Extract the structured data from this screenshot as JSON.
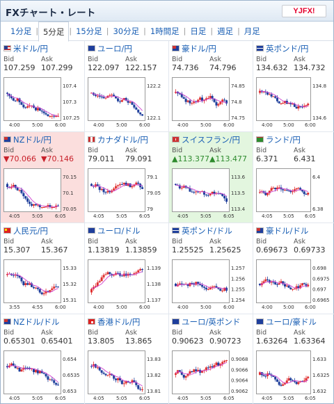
{
  "header": {
    "title": "FXチャート・レート",
    "logo": "YJFX!"
  },
  "tabs": [
    {
      "label": "1分足",
      "active": false
    },
    {
      "label": "5分足",
      "active": true
    },
    {
      "label": "15分足",
      "active": false
    },
    {
      "label": "30分足",
      "active": false
    },
    {
      "label": "1時間足",
      "active": false
    },
    {
      "label": "日足",
      "active": false
    },
    {
      "label": "週足",
      "active": false
    },
    {
      "label": "月足",
      "active": false
    }
  ],
  "bid_label": "Bid",
  "ask_label": "Ask",
  "pairs": [
    {
      "name": "米ドル/円",
      "flag": "us",
      "bid": "107.259",
      "ask": "107.299",
      "state": "",
      "yticks": [
        "107.4",
        "107.3",
        "107.25"
      ],
      "xticks": [
        "4:00",
        "5:00",
        "6:00"
      ],
      "trend": "down",
      "seed": 1
    },
    {
      "name": "ユーロ/円",
      "flag": "eu",
      "bid": "122.097",
      "ask": "122.157",
      "state": "",
      "yticks": [
        "122.2",
        "122.1"
      ],
      "xticks": [
        "4:00",
        "5:00",
        "6:00"
      ],
      "trend": "down",
      "seed": 2
    },
    {
      "name": "豪ドル/円",
      "flag": "au",
      "bid": "74.736",
      "ask": "74.796",
      "state": "",
      "yticks": [
        "74.85",
        "74.8",
        "74.75"
      ],
      "xticks": [
        "4:00",
        "5:00",
        "6:00"
      ],
      "trend": "down",
      "seed": 3
    },
    {
      "name": "英ポンド/円",
      "flag": "uk",
      "bid": "134.632",
      "ask": "134.732",
      "state": "",
      "yticks": [
        "134.8",
        "134.6"
      ],
      "xticks": [
        "4:00",
        "5:00",
        "6:00"
      ],
      "trend": "down",
      "seed": 4
    },
    {
      "name": "NZドル/円",
      "flag": "nz",
      "bid": "▼70.066",
      "ask": "▼70.146",
      "state": "neg",
      "yticks": [
        "70.15",
        "70.1",
        "70.05"
      ],
      "xticks": [
        "4:05",
        "5:05",
        "6:05"
      ],
      "trend": "down",
      "seed": 5
    },
    {
      "name": "カナダドル/円",
      "flag": "ca",
      "bid": "79.011",
      "ask": "79.091",
      "state": "",
      "yticks": [
        "79.1",
        "79.05",
        "79"
      ],
      "xticks": [
        "4:05",
        "5:05",
        "6:05"
      ],
      "trend": "down",
      "seed": 6
    },
    {
      "name": "スイスフラン/円",
      "flag": "ch",
      "bid": "▲113.377",
      "ask": "▲113.477",
      "state": "pos",
      "yticks": [
        "113.6",
        "113.5",
        "113.4"
      ],
      "xticks": [
        "4:05",
        "5:05",
        "6:05"
      ],
      "trend": "down",
      "seed": 7
    },
    {
      "name": "ランド/円",
      "flag": "za",
      "bid": "6.371",
      "ask": "6.431",
      "state": "",
      "yticks": [
        "6.4",
        "6.38"
      ],
      "xticks": [
        "4:05",
        "5:05",
        "6:05"
      ],
      "trend": "flat",
      "seed": 8
    },
    {
      "name": "人民元/円",
      "flag": "cn",
      "bid": "15.307",
      "ask": "15.367",
      "state": "",
      "yticks": [
        "15.33",
        "15.32",
        "15.31"
      ],
      "xticks": [
        "3:55",
        "4:55",
        "6:00"
      ],
      "trend": "down",
      "seed": 9
    },
    {
      "name": "ユーロ/ドル",
      "flag": "eu",
      "bid": "1.13819",
      "ask": "1.13859",
      "state": "",
      "yticks": [
        "1.139",
        "1.138",
        "1.137"
      ],
      "xticks": [
        "4:00",
        "5:00",
        "6:00"
      ],
      "trend": "up",
      "seed": 10
    },
    {
      "name": "英ポンド/ドル",
      "flag": "uk",
      "bid": "1.25525",
      "ask": "1.25625",
      "state": "",
      "yticks": [
        "1.257",
        "1.256",
        "1.255",
        "1.254"
      ],
      "xticks": [
        "4:00",
        "5:00",
        "6:00"
      ],
      "trend": "flat",
      "seed": 11
    },
    {
      "name": "豪ドル/ドル",
      "flag": "au",
      "bid": "0.69673",
      "ask": "0.69733",
      "state": "",
      "yticks": [
        "0.698",
        "0.6975",
        "0.697",
        "0.6965"
      ],
      "xticks": [
        "4:00",
        "5:00",
        "6:00"
      ],
      "trend": "flat",
      "seed": 12
    },
    {
      "name": "NZドル/ドル",
      "flag": "nz",
      "bid": "0.65301",
      "ask": "0.65401",
      "state": "",
      "yticks": [
        "0.654",
        "0.6535",
        "0.653"
      ],
      "xticks": [
        "4:05",
        "5:05",
        "6:05"
      ],
      "trend": "down",
      "seed": 13
    },
    {
      "name": "香港ドル/円",
      "flag": "hk",
      "bid": "13.805",
      "ask": "13.865",
      "state": "",
      "yticks": [
        "13.83",
        "13.82",
        "13.81"
      ],
      "xticks": [
        "4:05",
        "5:05",
        "6:05"
      ],
      "trend": "down",
      "seed": 14
    },
    {
      "name": "ユーロ/英ポンド",
      "flag": "eu",
      "bid": "0.90623",
      "ask": "0.90723",
      "state": "",
      "yticks": [
        "0.9068",
        "0.9066",
        "0.9064",
        "0.9062"
      ],
      "xticks": [
        "4:05",
        "5:05",
        "6:05"
      ],
      "trend": "flat",
      "seed": 15
    },
    {
      "name": "ユーロ/豪ドル",
      "flag": "eu",
      "bid": "1.63264",
      "ask": "1.63364",
      "state": "",
      "yticks": [
        "1.633",
        "1.6325",
        "1.632"
      ],
      "xticks": [
        "4:05",
        "5:05",
        "6:05"
      ],
      "trend": "flat",
      "seed": 16
    }
  ],
  "colors": {
    "link": "#1a5fb4",
    "up_candle": "#e03030",
    "down_candle": "#1f3f9c",
    "ma_line": "#d040d0",
    "neg_bg": "#fbdedd",
    "pos_bg": "#e3f6df"
  }
}
